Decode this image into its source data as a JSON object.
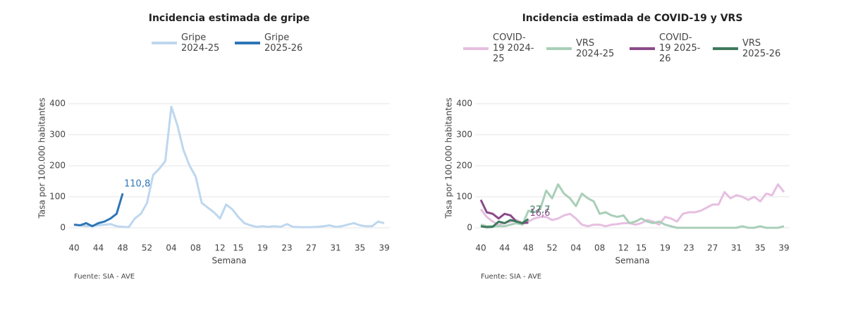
{
  "chart_data": [
    {
      "type": "line",
      "title": "Incidencia estimada de gripe",
      "y_label": "Tasa por 100.000 habitantes",
      "x_label": "Semana",
      "source": "Fuente: SIA - AVE",
      "categories": [
        "40",
        null,
        null,
        null,
        "44",
        null,
        null,
        null,
        "48",
        null,
        null,
        null,
        "52",
        null,
        null,
        null,
        "04",
        null,
        null,
        null,
        "08",
        null,
        null,
        null,
        "12",
        null,
        null,
        "15",
        null,
        null,
        null,
        "19",
        null,
        null,
        null,
        "23",
        null,
        null,
        null,
        "27",
        null,
        null,
        null,
        "31",
        null,
        null,
        null,
        "35",
        null,
        null,
        null,
        "39"
      ],
      "ylim": [
        0,
        450
      ],
      "yticks": [
        0,
        100,
        200,
        300,
        400
      ],
      "grid": true,
      "series": [
        {
          "name": "Gripe 2024-25",
          "color": "#bdd7ee",
          "values": [
            10,
            8,
            5,
            7,
            8,
            10,
            12,
            5,
            3,
            2,
            30,
            45,
            80,
            170,
            190,
            215,
            390,
            330,
            250,
            200,
            165,
            80,
            65,
            50,
            30,
            75,
            60,
            35,
            15,
            8,
            3,
            5,
            3,
            5,
            3,
            12,
            3,
            2,
            2,
            2,
            3,
            5,
            8,
            3,
            5,
            10,
            15,
            8,
            5,
            5,
            20,
            15
          ]
        },
        {
          "name": "Gripe 2025-26",
          "color": "#2e75b6",
          "values": [
            10,
            8,
            15,
            5,
            15,
            20,
            30,
            45,
            110.8,
            null,
            null,
            null,
            null,
            null,
            null,
            null,
            null,
            null,
            null,
            null,
            null,
            null,
            null,
            null,
            null,
            null,
            null,
            null,
            null,
            null,
            null,
            null,
            null,
            null,
            null,
            null,
            null,
            null,
            null,
            null,
            null,
            null,
            null,
            null,
            null,
            null,
            null,
            null,
            null,
            null,
            null,
            null
          ],
          "value_labels": [
            null,
            null,
            null,
            null,
            null,
            null,
            null,
            null,
            "110,8",
            null,
            null,
            null,
            null,
            null,
            null,
            null,
            null,
            null,
            null,
            null,
            null,
            null,
            null,
            null,
            null,
            null,
            null,
            null,
            null,
            null,
            null,
            null,
            null,
            null,
            null,
            null,
            null,
            null,
            null,
            null,
            null,
            null,
            null,
            null,
            null,
            null,
            null,
            null,
            null,
            null,
            null,
            null
          ]
        }
      ]
    },
    {
      "type": "line",
      "title": "Incidencia estimada de COVID-19 y VRS",
      "y_label": "Tasa por 100.000 habitantes",
      "x_label": "Semana",
      "source": "Fuente: SIA - AVE",
      "categories": [
        "40",
        null,
        null,
        null,
        "44",
        null,
        null,
        null,
        "48",
        null,
        null,
        null,
        "52",
        null,
        null,
        null,
        "04",
        null,
        null,
        null,
        "08",
        null,
        null,
        null,
        "12",
        null,
        null,
        "15",
        null,
        null,
        null,
        "19",
        null,
        null,
        null,
        "23",
        null,
        null,
        null,
        "27",
        null,
        null,
        null,
        "31",
        null,
        null,
        null,
        "35",
        null,
        null,
        null,
        "39"
      ],
      "ylim": [
        0,
        450
      ],
      "yticks": [
        0,
        100,
        200,
        300,
        400
      ],
      "grid": true,
      "series": [
        {
          "name": "COVID-19 2024-25",
          "color": "#e6bfe0",
          "values": [
            60,
            35,
            20,
            10,
            15,
            20,
            25,
            15,
            20,
            30,
            35,
            35,
            25,
            30,
            40,
            45,
            30,
            10,
            5,
            10,
            10,
            5,
            10,
            12,
            15,
            15,
            10,
            15,
            25,
            20,
            10,
            35,
            30,
            20,
            45,
            50,
            50,
            55,
            65,
            75,
            75,
            115,
            95,
            105,
            100,
            90,
            100,
            85,
            110,
            105,
            140,
            115
          ]
        },
        {
          "name": "VRS 2024-25",
          "color": "#a9cfb8",
          "values": [
            10,
            5,
            5,
            5,
            5,
            10,
            15,
            10,
            55,
            50,
            60,
            120,
            95,
            140,
            110,
            95,
            70,
            110,
            95,
            85,
            45,
            50,
            40,
            35,
            40,
            15,
            20,
            30,
            20,
            15,
            20,
            10,
            5,
            0,
            0,
            0,
            0,
            0,
            0,
            0,
            0,
            0,
            0,
            0,
            5,
            0,
            0,
            5,
            0,
            0,
            0,
            5
          ]
        },
        {
          "name": "COVID-19 2025-26",
          "color": "#8b4a8a",
          "values": [
            90,
            50,
            45,
            30,
            45,
            40,
            20,
            15,
            16.6,
            null,
            null,
            null,
            null,
            null,
            null,
            null,
            null,
            null,
            null,
            null,
            null,
            null,
            null,
            null,
            null,
            null,
            null,
            null,
            null,
            null,
            null,
            null,
            null,
            null,
            null,
            null,
            null,
            null,
            null,
            null,
            null,
            null,
            null,
            null,
            null,
            null,
            null,
            null,
            null,
            null,
            null,
            null
          ],
          "value_labels": [
            null,
            null,
            null,
            null,
            null,
            null,
            null,
            null,
            "16,6",
            null,
            null,
            null,
            null,
            null,
            null,
            null,
            null,
            null,
            null,
            null,
            null,
            null,
            null,
            null,
            null,
            null,
            null,
            null,
            null,
            null,
            null,
            null,
            null,
            null,
            null,
            null,
            null,
            null,
            null,
            null,
            null,
            null,
            null,
            null,
            null,
            null,
            null,
            null,
            null,
            null,
            null,
            null
          ]
        },
        {
          "name": "VRS 2025-26",
          "color": "#3f7a5e",
          "values": [
            5,
            2,
            3,
            20,
            15,
            25,
            20,
            15,
            27.7,
            null,
            null,
            null,
            null,
            null,
            null,
            null,
            null,
            null,
            null,
            null,
            null,
            null,
            null,
            null,
            null,
            null,
            null,
            null,
            null,
            null,
            null,
            null,
            null,
            null,
            null,
            null,
            null,
            null,
            null,
            null,
            null,
            null,
            null,
            null,
            null,
            null,
            null,
            null,
            null,
            null,
            null,
            null
          ],
          "value_labels": [
            null,
            null,
            null,
            null,
            null,
            null,
            null,
            null,
            "27,7",
            null,
            null,
            null,
            null,
            null,
            null,
            null,
            null,
            null,
            null,
            null,
            null,
            null,
            null,
            null,
            null,
            null,
            null,
            null,
            null,
            null,
            null,
            null,
            null,
            null,
            null,
            null,
            null,
            null,
            null,
            null,
            null,
            null,
            null,
            null,
            null,
            null,
            null,
            null,
            null,
            null,
            null,
            null
          ]
        }
      ]
    }
  ]
}
